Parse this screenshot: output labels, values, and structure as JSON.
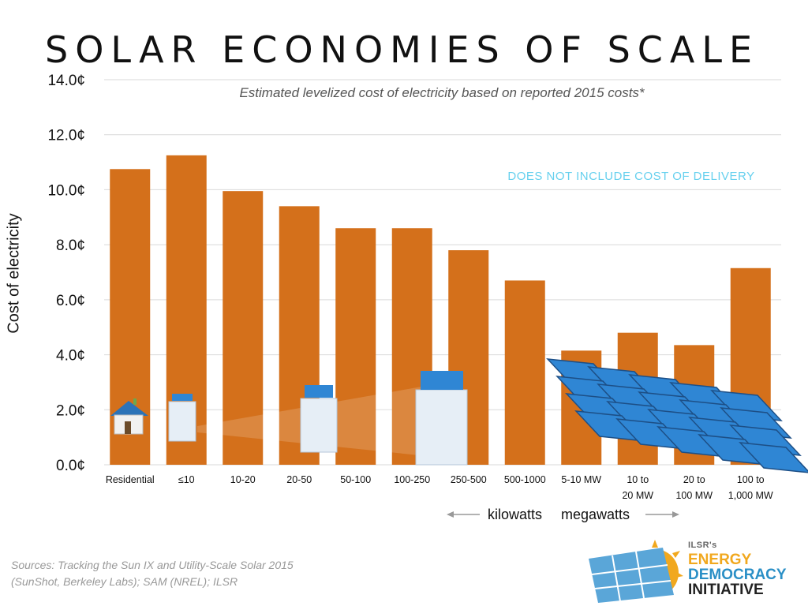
{
  "title": "SOLAR ECONOMIES OF SCALE",
  "subtitle": "Estimated levelized cost of electricity based on reported 2015 costs*",
  "note": "DOES NOT INCLUDE COST OF DELIVERY",
  "y_axis_label": "Cost of electricity",
  "units": {
    "kilowatts": "kilowatts",
    "megawatts": "megawatts"
  },
  "source_lines": [
    "Sources: Tracking the Sun IX and Utility-Scale Solar 2015",
    "(SunShot, Berkeley Labs); SAM (NREL); ILSR"
  ],
  "logo": {
    "small": "ILSR's",
    "line1": "ENERGY",
    "line2": "DEMOCRACY",
    "line3": "INITIATIVE"
  },
  "colors": {
    "bar": "#d4701b",
    "grid": "#d9d9d9",
    "note": "#66d0ee",
    "panel": "#2f86d4"
  },
  "chart_data": {
    "type": "bar",
    "title": "SOLAR ECONOMIES OF SCALE",
    "subtitle": "Estimated levelized cost of electricity based on reported 2015 costs*",
    "ylabel": "Cost of electricity",
    "ylim": [
      0,
      14
    ],
    "yticks": [
      "0.0¢",
      "2.0¢",
      "4.0¢",
      "6.0¢",
      "8.0¢",
      "10.0¢",
      "12.0¢",
      "14.0¢"
    ],
    "grid": true,
    "categories": [
      [
        "Residential"
      ],
      [
        "≤10"
      ],
      [
        "10-20"
      ],
      [
        "20-50"
      ],
      [
        "50-100"
      ],
      [
        "100-250"
      ],
      [
        "250-500"
      ],
      [
        "500-1000"
      ],
      [
        "5-10 MW"
      ],
      [
        "10 to",
        "20 MW"
      ],
      [
        "20 to",
        "100 MW"
      ],
      [
        "100 to",
        "1,000 MW"
      ]
    ],
    "values": [
      10.75,
      11.25,
      9.95,
      9.4,
      8.6,
      8.6,
      7.8,
      6.7,
      4.15,
      4.8,
      4.35,
      7.15
    ],
    "annotations": [
      "DOES NOT INCLUDE COST OF DELIVERY"
    ]
  }
}
